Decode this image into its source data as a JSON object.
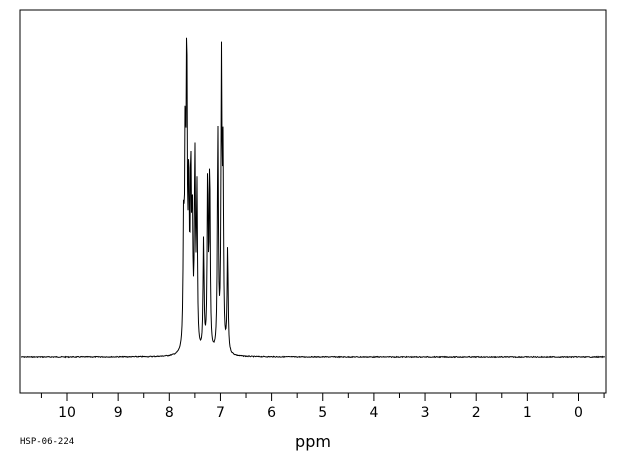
{
  "chart_data": {
    "type": "line",
    "xlabel": "ppm",
    "x_reversed": true,
    "xlim": [
      10.9,
      -0.5
    ],
    "x_ticks": [
      "10",
      "9",
      "8",
      "7",
      "6",
      "5",
      "4",
      "3",
      "2",
      "1",
      "0"
    ],
    "ylim": [
      0,
      1.0
    ],
    "grid": false,
    "legend": "none",
    "peaks": [
      {
        "ppm": 7.72,
        "height": 0.38
      },
      {
        "ppm": 7.69,
        "height": 0.62
      },
      {
        "ppm": 7.66,
        "height": 0.99
      },
      {
        "ppm": 7.62,
        "height": 0.5
      },
      {
        "ppm": 7.58,
        "height": 0.55
      },
      {
        "ppm": 7.55,
        "height": 0.4
      },
      {
        "ppm": 7.5,
        "height": 0.6
      },
      {
        "ppm": 7.46,
        "height": 0.5
      },
      {
        "ppm": 7.33,
        "height": 0.35
      },
      {
        "ppm": 7.25,
        "height": 0.55
      },
      {
        "ppm": 7.21,
        "height": 0.58
      },
      {
        "ppm": 7.05,
        "height": 0.7
      },
      {
        "ppm": 6.98,
        "height": 0.88
      },
      {
        "ppm": 6.95,
        "height": 0.58
      },
      {
        "ppm": 6.86,
        "height": 0.33
      }
    ],
    "colors": {
      "line": "#000000",
      "frame": "#000000",
      "background": "#ffffff"
    }
  },
  "footer": {
    "id": "HSP-06-224"
  }
}
